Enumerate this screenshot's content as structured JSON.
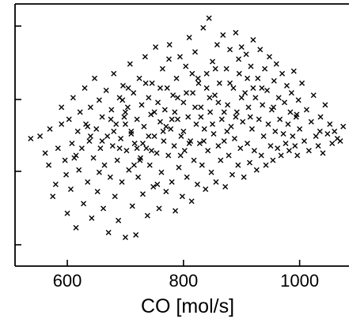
{
  "chart_data": {
    "type": "scatter",
    "marker": "x",
    "color": "#000000",
    "title": "",
    "xlabel": "CO [mol/s]",
    "ylabel": "",
    "xlim": [
      510,
      1085
    ],
    "x_ticks": [
      600,
      800,
      1000
    ],
    "x_tick_labels": [
      "600",
      "800",
      "1000"
    ],
    "y_tick_count": 4,
    "grid": false,
    "legend": "none",
    "series": [
      {
        "points": [
          [
            537,
            0.49
          ],
          [
            553,
            0.5
          ],
          [
            562,
            0.43
          ],
          [
            570,
            0.53
          ],
          [
            568,
            0.38
          ],
          [
            575,
            0.25
          ],
          [
            580,
            0.3
          ],
          [
            584,
            0.45
          ],
          [
            590,
            0.55
          ],
          [
            590,
            0.62
          ],
          [
            596,
            0.4
          ],
          [
            598,
            0.34
          ],
          [
            600,
            0.18
          ],
          [
            603,
            0.57
          ],
          [
            606,
            0.28
          ],
          [
            608,
            0.47
          ],
          [
            610,
            0.66
          ],
          [
            612,
            0.41
          ],
          [
            615,
            0.12
          ],
          [
            618,
            0.52
          ],
          [
            620,
            0.36
          ],
          [
            622,
            0.6
          ],
          [
            625,
            0.45
          ],
          [
            628,
            0.22
          ],
          [
            630,
            0.7
          ],
          [
            632,
            0.55
          ],
          [
            635,
            0.31
          ],
          [
            638,
            0.48
          ],
          [
            640,
            0.62
          ],
          [
            642,
            0.16
          ],
          [
            645,
            0.41
          ],
          [
            647,
            0.74
          ],
          [
            650,
            0.53
          ],
          [
            652,
            0.27
          ],
          [
            655,
            0.65
          ],
          [
            657,
            0.45
          ],
          [
            660,
            0.58
          ],
          [
            662,
            0.2
          ],
          [
            664,
            0.38
          ],
          [
            667,
            0.69
          ],
          [
            669,
            0.5
          ],
          [
            671,
            0.1
          ],
          [
            674,
            0.33
          ],
          [
            676,
            0.61
          ],
          [
            678,
            0.46
          ],
          [
            680,
            0.76
          ],
          [
            682,
            0.25
          ],
          [
            684,
            0.55
          ],
          [
            686,
            0.4
          ],
          [
            688,
            0.15
          ],
          [
            690,
            0.66
          ],
          [
            692,
            0.49
          ],
          [
            694,
            0.31
          ],
          [
            696,
            0.71
          ],
          [
            698,
            0.58
          ],
          [
            700,
            0.08
          ],
          [
            702,
            0.44
          ],
          [
            704,
            0.62
          ],
          [
            706,
            0.36
          ],
          [
            708,
            0.8
          ],
          [
            710,
            0.52
          ],
          [
            712,
            0.21
          ],
          [
            714,
            0.68
          ],
          [
            716,
            0.47
          ],
          [
            718,
            0.09
          ],
          [
            720,
            0.57
          ],
          [
            722,
            0.33
          ],
          [
            724,
            0.74
          ],
          [
            726,
            0.41
          ],
          [
            728,
            0.63
          ],
          [
            730,
            0.26
          ],
          [
            732,
            0.54
          ],
          [
            734,
            0.83
          ],
          [
            736,
            0.45
          ],
          [
            738,
            0.17
          ],
          [
            740,
            0.66
          ],
          [
            742,
            0.38
          ],
          [
            744,
            0.59
          ],
          [
            746,
            0.72
          ],
          [
            748,
            0.29
          ],
          [
            750,
            0.5
          ],
          [
            752,
            0.87
          ],
          [
            754,
            0.43
          ],
          [
            756,
            0.64
          ],
          [
            758,
            0.2
          ],
          [
            760,
            0.56
          ],
          [
            762,
            0.35
          ],
          [
            764,
            0.78
          ],
          [
            766,
            0.48
          ],
          [
            768,
            0.61
          ],
          [
            770,
            0.27
          ],
          [
            772,
            0.7
          ],
          [
            774,
            0.42
          ],
          [
            776,
            0.88
          ],
          [
            778,
            0.53
          ],
          [
            780,
            0.31
          ],
          [
            782,
            0.67
          ],
          [
            784,
            0.46
          ],
          [
            786,
            0.19
          ],
          [
            788,
            0.74
          ],
          [
            790,
            0.57
          ],
          [
            792,
            0.37
          ],
          [
            794,
            0.83
          ],
          [
            796,
            0.5
          ],
          [
            798,
            0.25
          ],
          [
            800,
            0.64
          ],
          [
            802,
            0.44
          ],
          [
            804,
            0.79
          ],
          [
            806,
            0.33
          ],
          [
            808,
            0.58
          ],
          [
            810,
            0.91
          ],
          [
            812,
            0.48
          ],
          [
            814,
            0.23
          ],
          [
            816,
            0.68
          ],
          [
            818,
            0.4
          ],
          [
            820,
            0.85
          ],
          [
            822,
            0.55
          ],
          [
            824,
            0.3
          ],
          [
            826,
            0.72
          ],
          [
            828,
            0.47
          ],
          [
            830,
            0.62
          ],
          [
            832,
            0.38
          ],
          [
            834,
            0.95
          ],
          [
            836,
            0.53
          ],
          [
            838,
            0.28
          ],
          [
            840,
            0.76
          ],
          [
            842,
            0.44
          ],
          [
            844,
            0.99
          ],
          [
            846,
            0.6
          ],
          [
            848,
            0.35
          ],
          [
            850,
            0.81
          ],
          [
            852,
            0.51
          ],
          [
            854,
            0.67
          ],
          [
            856,
            0.31
          ],
          [
            858,
            0.88
          ],
          [
            860,
            0.46
          ],
          [
            862,
            0.72
          ],
          [
            864,
            0.4
          ],
          [
            866,
            0.57
          ],
          [
            868,
            0.92
          ],
          [
            870,
            0.48
          ],
          [
            872,
            0.29
          ],
          [
            874,
            0.78
          ],
          [
            876,
            0.63
          ],
          [
            878,
            0.42
          ],
          [
            880,
            0.86
          ],
          [
            882,
            0.54
          ],
          [
            884,
            0.34
          ],
          [
            886,
            0.7
          ],
          [
            888,
            0.49
          ],
          [
            890,
            0.93
          ],
          [
            892,
            0.6
          ],
          [
            894,
            0.38
          ],
          [
            896,
            0.76
          ],
          [
            898,
            0.45
          ],
          [
            900,
            0.87
          ],
          [
            902,
            0.56
          ],
          [
            904,
            0.33
          ],
          [
            906,
            0.68
          ],
          [
            908,
            0.84
          ],
          [
            910,
            0.47
          ],
          [
            912,
            0.62
          ],
          [
            914,
            0.39
          ],
          [
            916,
            0.79
          ],
          [
            918,
            0.53
          ],
          [
            920,
            0.9
          ],
          [
            922,
            0.44
          ],
          [
            924,
            0.66
          ],
          [
            926,
            0.36
          ],
          [
            928,
            0.74
          ],
          [
            930,
            0.57
          ],
          [
            932,
            0.86
          ],
          [
            934,
            0.42
          ],
          [
            936,
            0.63
          ],
          [
            938,
            0.5
          ],
          [
            940,
            0.78
          ],
          [
            942,
            0.38
          ],
          [
            944,
            0.69
          ],
          [
            946,
            0.55
          ],
          [
            948,
            0.83
          ],
          [
            950,
            0.46
          ],
          [
            952,
            0.61
          ],
          [
            954,
            0.4
          ],
          [
            956,
            0.73
          ],
          [
            958,
            0.52
          ],
          [
            960,
            0.8
          ],
          [
            962,
            0.45
          ],
          [
            964,
            0.66
          ],
          [
            966,
            0.57
          ],
          [
            968,
            0.42
          ],
          [
            970,
            0.76
          ],
          [
            972,
            0.51
          ],
          [
            974,
            0.64
          ],
          [
            976,
            0.47
          ],
          [
            978,
            0.71
          ],
          [
            980,
            0.55
          ],
          [
            982,
            0.44
          ],
          [
            984,
            0.6
          ],
          [
            986,
            0.68
          ],
          [
            988,
            0.5
          ],
          [
            990,
            0.77
          ],
          [
            992,
            0.46
          ],
          [
            994,
            0.58
          ],
          [
            996,
            0.42
          ],
          [
            998,
            0.65
          ],
          [
            1000,
            0.53
          ],
          [
            1004,
            0.72
          ],
          [
            1008,
            0.48
          ],
          [
            1012,
            0.61
          ],
          [
            1016,
            0.44
          ],
          [
            1020,
            0.56
          ],
          [
            1024,
            0.67
          ],
          [
            1028,
            0.5
          ],
          [
            1032,
            0.46
          ],
          [
            1036,
            0.58
          ],
          [
            1040,
            0.43
          ],
          [
            1044,
            0.63
          ],
          [
            1048,
            0.51
          ],
          [
            1052,
            0.55
          ],
          [
            1056,
            0.47
          ],
          [
            1060,
            0.52
          ],
          [
            1065,
            0.49
          ],
          [
            1070,
            0.48
          ],
          [
            1075,
            0.54
          ],
          [
            660,
            0.48
          ],
          [
            680,
            0.52
          ],
          [
            700,
            0.6
          ],
          [
            720,
            0.45
          ],
          [
            740,
            0.5
          ],
          [
            760,
            0.7
          ],
          [
            780,
            0.57
          ],
          [
            800,
            0.52
          ],
          [
            820,
            0.62
          ],
          [
            840,
            0.7
          ],
          [
            860,
            0.64
          ],
          [
            880,
            0.72
          ],
          [
            900,
            0.66
          ],
          [
            920,
            0.7
          ],
          [
            640,
            0.5
          ],
          [
            700,
            0.55
          ],
          [
            750,
            0.6
          ],
          [
            790,
            0.66
          ],
          [
            830,
            0.58
          ],
          [
            870,
            0.6
          ],
          [
            910,
            0.74
          ],
          [
            690,
            0.45
          ],
          [
            710,
            0.51
          ],
          [
            730,
            0.47
          ],
          [
            770,
            0.54
          ],
          [
            810,
            0.47
          ],
          [
            850,
            0.55
          ],
          [
            890,
            0.58
          ],
          [
            725,
            0.4
          ],
          [
            745,
            0.44
          ],
          [
            765,
            0.52
          ],
          [
            785,
            0.6
          ],
          [
            805,
            0.68
          ],
          [
            825,
            0.74
          ],
          [
            845,
            0.66
          ],
          [
            705,
            0.7
          ],
          [
            735,
            0.72
          ],
          [
            775,
            0.82
          ],
          [
            815,
            0.76
          ],
          [
            855,
            0.78
          ],
          [
            895,
            0.82
          ],
          [
            935,
            0.7
          ],
          [
            615,
            0.42
          ],
          [
            635,
            0.54
          ],
          [
            655,
            0.35
          ],
          [
            675,
            0.57
          ],
          [
            695,
            0.65
          ],
          [
            715,
            0.38
          ],
          [
            755,
            0.3
          ],
          [
            795,
            0.42
          ],
          [
            835,
            0.48
          ],
          [
            875,
            0.52
          ],
          [
            915,
            0.58
          ],
          [
            955,
            0.62
          ],
          [
            995,
            0.59
          ],
          [
            1035,
            0.52
          ]
        ]
      }
    ]
  }
}
